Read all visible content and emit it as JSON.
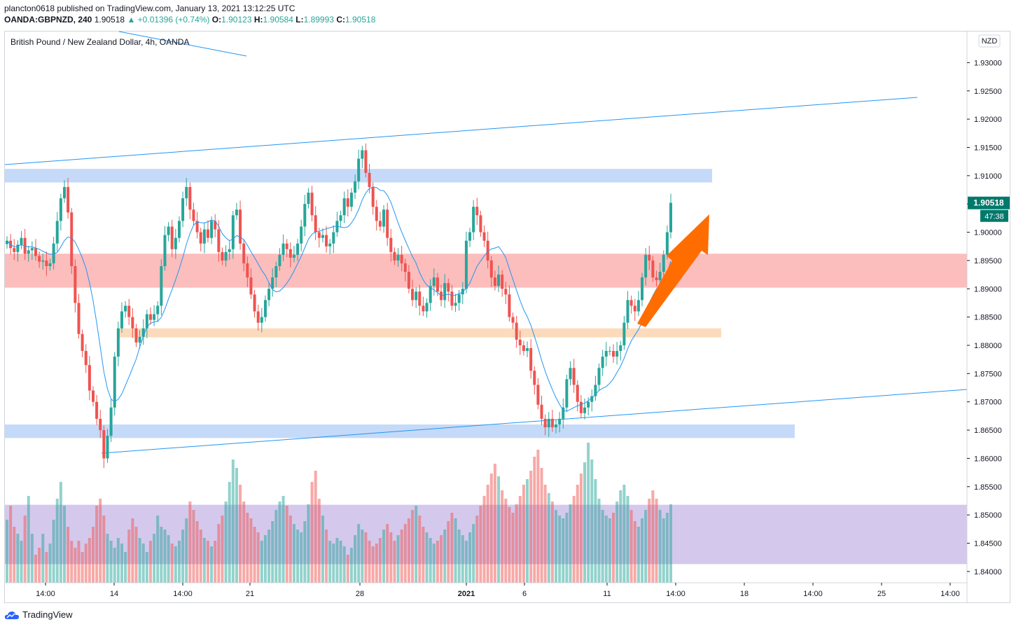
{
  "header": {
    "line1": "plancton0618 published on TradingView.com, January 13, 2021 13:12:25 UTC",
    "symbol": "OANDA:GBPNZD, 240",
    "last": "1.90518",
    "change": "+0.01396 (+0.74%)",
    "o_label": "O:",
    "o": "1.90123",
    "h_label": "H:",
    "h": "1.90584",
    "l_label": "L:",
    "l": "1.89993",
    "c_label": "C:",
    "c": "1.90518"
  },
  "chart_title": "British Pound / New Zealand Dollar, 4h, OANDA",
  "currency_badge": "NZD",
  "last_price_label": "1.90518",
  "countdown_label": "47:38",
  "footer": {
    "brand": "TradingView"
  },
  "colors": {
    "up": "#26a69a",
    "down": "#ef5350",
    "ma": "#2196f3",
    "zone_blue": "#bbd3f7",
    "zone_red": "#fbb2b2",
    "zone_orange": "#fbd5b0",
    "zone_purple": "#cfc3ea",
    "arrow": "#ff6d00"
  },
  "chart_data": {
    "type": "candlestick",
    "title": "British Pound / New Zealand Dollar, 4h, OANDA",
    "y_ticks": [
      "1.84000",
      "1.84500",
      "1.85000",
      "1.85500",
      "1.86000",
      "1.86500",
      "1.87000",
      "1.87500",
      "1.88000",
      "1.88500",
      "1.89000",
      "1.89500",
      "1.90000",
      "1.90500",
      "1.91000",
      "1.91500",
      "1.92000",
      "1.92500",
      "1.93000"
    ],
    "y_range": [
      1.838,
      1.9355
    ],
    "x_ticks": [
      "14:00",
      "14",
      "14:00",
      "21",
      "28",
      "2021",
      "6",
      "11",
      "14:00",
      "18",
      "14:00",
      "25",
      "14:00"
    ],
    "x_tick_bold": "2021",
    "close_path": [
      1.8985,
      1.8972,
      1.8965,
      1.8978,
      1.899,
      1.8962,
      1.8968,
      1.8972,
      1.8958,
      1.8948,
      1.895,
      1.894,
      1.8945,
      1.898,
      1.902,
      1.906,
      1.908,
      1.9035,
      1.894,
      1.8875,
      1.882,
      1.879,
      1.8765,
      1.872,
      1.87,
      1.867,
      1.865,
      1.86,
      1.864,
      1.869,
      1.878,
      1.883,
      1.886,
      1.887,
      1.885,
      1.883,
      1.8805,
      1.8815,
      1.883,
      1.8855,
      1.8845,
      1.8855,
      1.887,
      1.894,
      1.8995,
      1.901,
      1.897,
      1.899,
      1.902,
      1.906,
      1.908,
      1.904,
      1.902,
      1.9,
      1.898,
      1.9005,
      1.899,
      1.902,
      1.9005,
      1.8965,
      1.895,
      1.8965,
      1.897,
      1.903,
      1.904,
      1.898,
      1.8945,
      1.892,
      1.889,
      1.886,
      1.884,
      1.885,
      1.888,
      1.89,
      1.892,
      1.894,
      1.896,
      1.898,
      1.897,
      1.8955,
      1.896,
      1.898,
      1.901,
      1.905,
      1.907,
      1.903,
      1.9,
      1.899,
      1.8995,
      1.8975,
      1.898,
      1.9,
      1.902,
      1.903,
      1.906,
      1.9045,
      1.907,
      1.909,
      1.913,
      1.9145,
      1.9105,
      1.908,
      1.9045,
      1.902,
      1.901,
      1.904,
      1.899,
      1.8965,
      1.895,
      1.896,
      1.8945,
      1.893,
      1.89,
      1.888,
      1.8895,
      1.887,
      1.886,
      1.8875,
      1.8905,
      1.892,
      1.8895,
      1.888,
      1.891,
      1.8895,
      1.887,
      1.8875,
      1.889,
      1.89,
      1.8985,
      1.9,
      1.9045,
      1.903,
      1.9,
      1.8985,
      1.895,
      1.892,
      1.8905,
      1.8925,
      1.89,
      1.889,
      1.885,
      1.884,
      1.881,
      1.88,
      1.879,
      1.8795,
      1.8755,
      1.873,
      1.8695,
      1.867,
      1.8655,
      1.867,
      1.8655,
      1.866,
      1.867,
      1.869,
      1.874,
      1.876,
      1.873,
      1.87,
      1.868,
      1.869,
      1.87,
      1.871,
      1.873,
      1.876,
      1.878,
      1.879,
      1.879,
      1.878,
      1.879,
      1.88,
      1.884,
      1.888,
      1.887,
      1.886,
      1.888,
      1.892,
      1.896,
      1.895,
      1.892,
      1.8915,
      1.893,
      1.896,
      1.9,
      1.9052
    ],
    "volume_path": [
      0.45,
      0.55,
      0.4,
      0.35,
      0.3,
      0.48,
      0.62,
      0.35,
      0.2,
      0.25,
      0.35,
      0.22,
      0.28,
      0.45,
      0.6,
      0.72,
      0.55,
      0.4,
      0.3,
      0.25,
      0.3,
      0.22,
      0.28,
      0.32,
      0.4,
      0.55,
      0.6,
      0.48,
      0.35,
      0.3,
      0.25,
      0.32,
      0.28,
      0.22,
      0.38,
      0.46,
      0.4,
      0.32,
      0.28,
      0.22,
      0.3,
      0.35,
      0.48,
      0.4,
      0.38,
      0.34,
      0.28,
      0.26,
      0.3,
      0.38,
      0.46,
      0.58,
      0.52,
      0.44,
      0.38,
      0.32,
      0.3,
      0.26,
      0.3,
      0.42,
      0.48,
      0.58,
      0.72,
      0.88,
      0.82,
      0.7,
      0.58,
      0.5,
      0.46,
      0.4,
      0.36,
      0.3,
      0.34,
      0.38,
      0.44,
      0.52,
      0.58,
      0.62,
      0.55,
      0.48,
      0.42,
      0.38,
      0.36,
      0.44,
      0.56,
      0.72,
      0.8,
      0.6,
      0.48,
      0.38,
      0.3,
      0.28,
      0.32,
      0.3,
      0.26,
      0.2,
      0.25,
      0.34,
      0.42,
      0.38,
      0.36,
      0.3,
      0.26,
      0.28,
      0.32,
      0.38,
      0.42,
      0.36,
      0.3,
      0.34,
      0.38,
      0.42,
      0.46,
      0.52,
      0.55,
      0.48,
      0.4,
      0.36,
      0.32,
      0.28,
      0.3,
      0.34,
      0.38,
      0.44,
      0.5,
      0.46,
      0.38,
      0.34,
      0.3,
      0.36,
      0.42,
      0.48,
      0.55,
      0.62,
      0.7,
      0.78,
      0.85,
      0.76,
      0.66,
      0.6,
      0.54,
      0.5,
      0.56,
      0.62,
      0.7,
      0.74,
      0.8,
      0.9,
      0.95,
      0.82,
      0.7,
      0.64,
      0.58,
      0.52,
      0.48,
      0.46,
      0.5,
      0.56,
      0.62,
      0.7,
      0.78,
      0.86,
      1.0,
      0.88,
      0.74,
      0.6,
      0.52,
      0.48,
      0.46,
      0.5,
      0.58,
      0.66,
      0.7,
      0.62,
      0.52,
      0.44,
      0.4,
      0.46,
      0.52,
      0.6,
      0.66,
      0.6,
      0.52,
      0.46,
      0.5,
      0.56
    ]
  }
}
